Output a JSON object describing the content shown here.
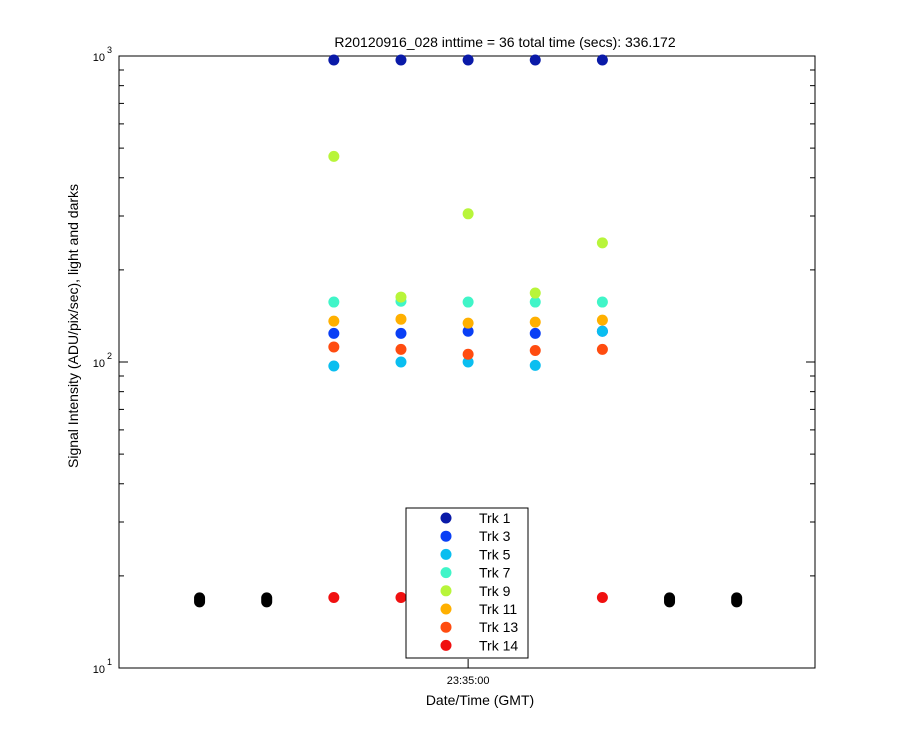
{
  "chart_data": {
    "type": "scatter",
    "title": "R20120916_028 inttime = 36 total time (secs): 336.172",
    "xlabel": "Date/Time (GMT)",
    "ylabel": "Signal Intensity (ADU/pix/sec), light and darks",
    "y_scale": "log",
    "ylim": [
      10,
      1000
    ],
    "xlim": [
      "23:32:24",
      "23:37:35"
    ],
    "x_ticks": [
      "23:35:00"
    ],
    "y_ticks": [
      {
        "base": "10",
        "exp": "1",
        "value": 10
      },
      {
        "base": "10",
        "exp": "2",
        "value": 100
      },
      {
        "base": "10",
        "exp": "3",
        "value": 1000
      }
    ],
    "legend_position": "bottom-center",
    "series": [
      {
        "name": "Trk 1",
        "color": "#0a1aa8",
        "points": [
          [
            "23:34:00",
            970
          ],
          [
            "23:34:30",
            970
          ],
          [
            "23:35:00",
            970
          ],
          [
            "23:35:30",
            970
          ],
          [
            "23:36:00",
            970
          ]
        ]
      },
      {
        "name": "Trk 3",
        "color": "#0a3ff5",
        "points": [
          [
            "23:34:00",
            124
          ],
          [
            "23:34:30",
            124
          ],
          [
            "23:35:00",
            126
          ],
          [
            "23:35:30",
            124
          ],
          [
            "23:36:00",
            126
          ]
        ]
      },
      {
        "name": "Trk 5",
        "color": "#0abef0",
        "points": [
          [
            "23:34:00",
            97
          ],
          [
            "23:34:30",
            100
          ],
          [
            "23:35:00",
            100
          ],
          [
            "23:35:30",
            97.5
          ],
          [
            "23:36:00",
            126
          ]
        ]
      },
      {
        "name": "Trk 7",
        "color": "#40f5c8",
        "points": [
          [
            "23:34:00",
            157
          ],
          [
            "23:34:30",
            158
          ],
          [
            "23:35:00",
            157
          ],
          [
            "23:35:30",
            157
          ],
          [
            "23:36:00",
            157
          ]
        ]
      },
      {
        "name": "Trk 9",
        "color": "#b8f53a",
        "points": [
          [
            "23:34:00",
            470
          ],
          [
            "23:34:30",
            163
          ],
          [
            "23:35:00",
            305
          ],
          [
            "23:35:30",
            168
          ],
          [
            "23:36:00",
            245
          ]
        ]
      },
      {
        "name": "Trk 11",
        "color": "#ffb000",
        "points": [
          [
            "23:34:00",
            136
          ],
          [
            "23:34:30",
            138
          ],
          [
            "23:35:00",
            134
          ],
          [
            "23:35:30",
            135
          ],
          [
            "23:36:00",
            137
          ]
        ]
      },
      {
        "name": "Trk 13",
        "color": "#ff4c10",
        "points": [
          [
            "23:34:00",
            112
          ],
          [
            "23:34:30",
            110
          ],
          [
            "23:35:00",
            106
          ],
          [
            "23:35:30",
            109
          ],
          [
            "23:36:00",
            110
          ]
        ]
      },
      {
        "name": "Trk 14",
        "color": "#f01010",
        "points": [
          [
            "23:34:00",
            17
          ],
          [
            "23:34:30",
            17
          ],
          [
            "23:36:00",
            17
          ]
        ]
      }
    ],
    "darks": {
      "color": "#000000",
      "points": [
        [
          "23:33:00",
          16.7
        ],
        [
          "23:33:30",
          16.7
        ],
        [
          "23:36:30",
          16.7
        ],
        [
          "23:37:00",
          16.7
        ]
      ]
    }
  }
}
